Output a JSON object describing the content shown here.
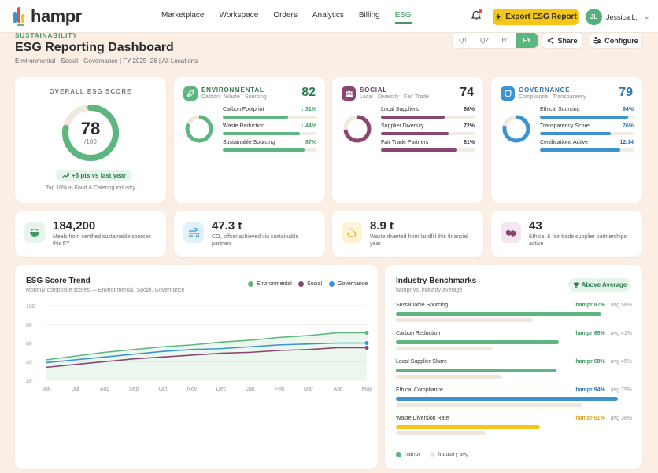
{
  "brand": {
    "name": "hampr"
  },
  "nav": {
    "links": [
      "Marketplace",
      "Workspace",
      "Orders",
      "Analytics",
      "Billing",
      "ESG"
    ],
    "active": "ESG"
  },
  "actions": {
    "export_label": "Export ESG Report"
  },
  "user": {
    "initials": "JL",
    "name": "Jessica L."
  },
  "header": {
    "eyebrow": "SUSTAINABILITY",
    "title": "ESG Reporting Dashboard",
    "subtitle": "Environmental · Social · Governance  |  FY 2025–26  |  All Locations",
    "periods": [
      "Q1",
      "Q2",
      "H1",
      "FY"
    ],
    "active_period": "FY",
    "share_label": "Share",
    "configure_label": "Configure"
  },
  "overall": {
    "title": "OVERALL ESG SCORE",
    "score": "78",
    "score_value": 78,
    "out_of": "/100",
    "delta": "+6 pts vs last year",
    "rank": "Top 18% in Food & Catering industry"
  },
  "pillars": [
    {
      "name": "ENVIRONMENTAL",
      "tags": "Carbon · Waste · Sourcing",
      "score": "82",
      "score_value": 82,
      "color": "#5db67f",
      "icon_bg": "#5db67f",
      "icon": "leaf-icon",
      "metrics": [
        {
          "label": "Carbon Footprint",
          "value": "↓ 31%",
          "fill": 0.7
        },
        {
          "label": "Waste Reduction",
          "value": "↑ 44%",
          "fill": 0.82
        },
        {
          "label": "Sustainable Sourcing",
          "value": "87%",
          "fill": 0.87
        }
      ]
    },
    {
      "name": "SOCIAL",
      "tags": "Local · Diversity · Fair Trade",
      "score": "74",
      "score_value": 74,
      "color": "#8a4672",
      "icon_bg": "#8a4672",
      "icon": "people-icon",
      "metrics": [
        {
          "label": "Local Suppliers",
          "value": "68%",
          "fill": 0.68
        },
        {
          "label": "Supplier Diversity",
          "value": "72%",
          "fill": 0.72
        },
        {
          "label": "Fair Trade Partners",
          "value": "81%",
          "fill": 0.81
        }
      ]
    },
    {
      "name": "GOVERNANCE",
      "tags": "Compliance · Transparency",
      "score": "79",
      "score_value": 79,
      "color": "#3c93cf",
      "icon_bg": "#3c93cf",
      "icon": "shield-icon",
      "metrics": [
        {
          "label": "Ethical Sourcing",
          "value": "94%",
          "fill": 0.94
        },
        {
          "label": "Transparency Score",
          "value": "76%",
          "fill": 0.76
        },
        {
          "label": "Certifications Active",
          "value": "12/14",
          "fill": 0.857
        }
      ]
    }
  ],
  "kpis": [
    {
      "value": "184,200",
      "label": "Meals from certified sustainable sources this FY",
      "icon": "bowl-icon",
      "color": "#3e9a62",
      "bg": "#e6f4ec"
    },
    {
      "value": "47.3 t",
      "label": "CO₂ offset achieved via sustainable partners",
      "icon": "wind-icon",
      "color": "#3c93cf",
      "bg": "#e3f0fa"
    },
    {
      "value": "8.9 t",
      "label": "Waste diverted from landfill this financial year",
      "icon": "recycle-icon",
      "color": "#d9a820",
      "bg": "#fdf4d6"
    },
    {
      "value": "43",
      "label": "Ethical & fair trade supplier partnerships active",
      "icon": "handshake-icon",
      "color": "#8a4672",
      "bg": "#f3e6ee"
    }
  ],
  "trend": {
    "title": "ESG Score Trend",
    "subtitle": "Monthly composite scores — Environmental, Social, Governance"
  },
  "chart_data": {
    "type": "line",
    "categories": [
      "Jun",
      "Jul",
      "Aug",
      "Sep",
      "Oct",
      "Nov",
      "Dec",
      "Jan",
      "Feb",
      "Mar",
      "Apr",
      "May"
    ],
    "series": [
      {
        "name": "Environmental",
        "color": "#5db67f",
        "values": [
          42,
          46,
          50,
          53,
          56,
          58,
          61,
          63,
          66,
          68,
          71,
          71
        ]
      },
      {
        "name": "Social",
        "color": "#8a4672",
        "values": [
          34,
          37,
          40,
          43,
          45,
          47,
          49,
          50,
          52,
          53,
          55,
          55
        ]
      },
      {
        "name": "Governance",
        "color": "#3c93cf",
        "values": [
          39,
          42,
          45,
          48,
          51,
          53,
          54,
          56,
          58,
          59,
          60,
          60
        ]
      }
    ],
    "yticks": [
      "100",
      "80",
      "60",
      "40",
      "20"
    ],
    "ylim": [
      20,
      100
    ],
    "grid": true,
    "legend": "top-right"
  },
  "benchmarks": {
    "title": "Industry Benchmarks",
    "subtitle": "hampr vs. industry average",
    "badge": "Above Average",
    "rows": [
      {
        "label": "Sustainable Sourcing",
        "you": "hampr 87%",
        "avg": "avg 58%",
        "you_v": 0.87,
        "avg_v": 0.58,
        "color": "#5db67f"
      },
      {
        "label": "Carbon Reduction",
        "you": "hampr 69%",
        "avg": "avg 41%",
        "you_v": 0.69,
        "avg_v": 0.41,
        "color": "#5db67f"
      },
      {
        "label": "Local Supplier Share",
        "you": "hampr 68%",
        "avg": "avg 45%",
        "you_v": 0.68,
        "avg_v": 0.45,
        "color": "#5db67f"
      },
      {
        "label": "Ethical Compliance",
        "you": "hampr 94%",
        "avg": "avg 79%",
        "you_v": 0.94,
        "avg_v": 0.79,
        "color": "#3c93cf"
      },
      {
        "label": "Waste Diversion Rate",
        "you": "hampr 61%",
        "avg": "avg 38%",
        "you_v": 0.61,
        "avg_v": 0.38,
        "color": "#f5c518"
      }
    ],
    "legend_you": "hampr",
    "legend_avg": "Industry avg"
  }
}
